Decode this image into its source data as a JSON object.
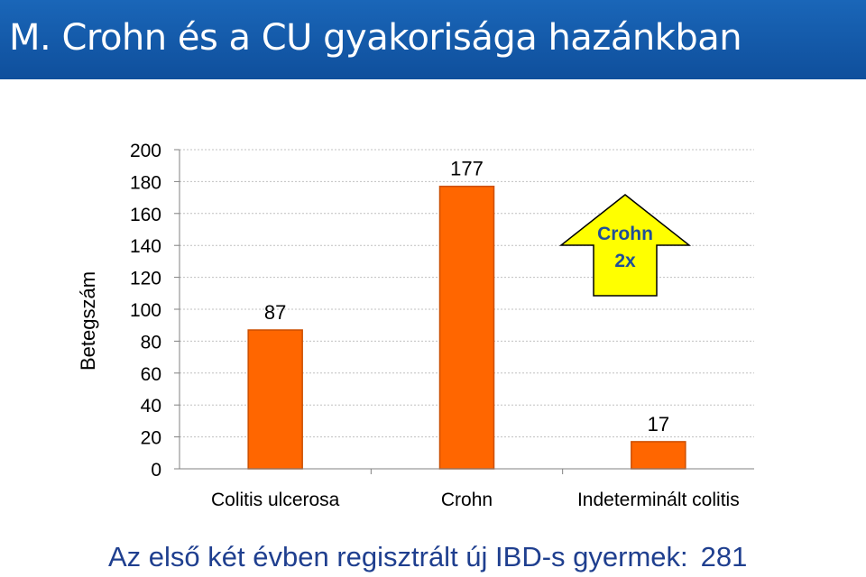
{
  "slide": {
    "title": "M. Crohn és a CU gyakorisága  hazánkban",
    "footer_text": "Az első két évben regisztrált új IBD-s gyermek:",
    "footer_total": "281"
  },
  "callout": {
    "line1": "Crohn",
    "line2": "2x",
    "fill": "#ffff00",
    "text_color": "#1f4e99"
  },
  "colors": {
    "header": "#125aab",
    "bar": "#ff6600",
    "bar_edge": "#cc4f00",
    "grid": "#c0c0c0"
  },
  "chart_data": {
    "type": "bar",
    "categories": [
      "Colitis ulcerosa",
      "Crohn",
      "Indeterminált colitis"
    ],
    "values": [
      87,
      177,
      17
    ],
    "data_labels": [
      "87",
      "177",
      "17"
    ],
    "title": "",
    "xlabel": "",
    "ylabel": "Betegszám",
    "ylim": [
      0,
      200
    ],
    "yticks": [
      0,
      20,
      40,
      60,
      80,
      100,
      120,
      140,
      160,
      180,
      200
    ],
    "grid": true,
    "legend": "none"
  }
}
